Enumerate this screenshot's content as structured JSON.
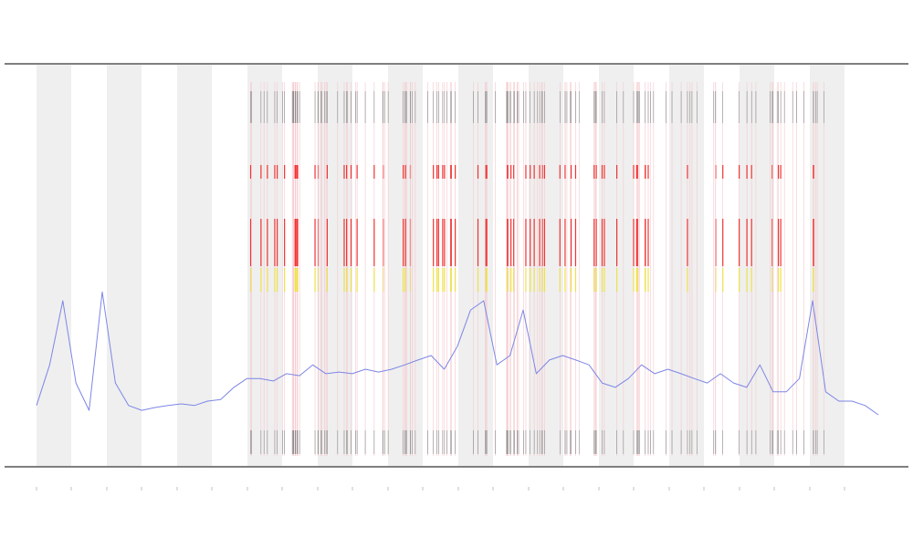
{
  "chart_data": {
    "type": "line",
    "color": "#7d86e6",
    "ylim": [
      0,
      100
    ],
    "values": [
      15.2,
      25.3,
      41.2,
      20.8,
      14.0,
      43.4,
      20.8,
      15.2,
      14.0,
      14.7,
      15.2,
      15.6,
      15.2,
      16.3,
      16.7,
      19.7,
      21.9,
      21.9,
      21.3,
      23.1,
      22.6,
      25.3,
      23.1,
      23.5,
      23.1,
      24.2,
      23.5,
      24.2,
      25.3,
      26.5,
      27.6,
      24.2,
      29.9,
      38.9,
      41.2,
      25.3,
      27.6,
      38.9,
      23.1,
      26.5,
      27.6,
      26.5,
      25.3,
      20.8,
      19.7,
      21.9,
      25.3,
      23.1,
      24.2,
      23.1,
      21.9,
      20.8,
      23.1,
      20.8,
      19.7,
      25.3,
      18.6,
      18.6,
      21.9,
      41.2,
      18.6,
      16.3,
      16.3,
      15.2,
      12.9
    ]
  }
}
